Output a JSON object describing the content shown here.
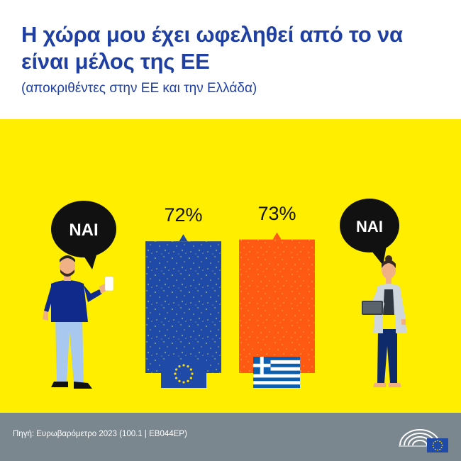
{
  "header": {
    "title": "Η χώρα μου έχει ωφεληθεί από το να είναι μέλος της ΕΕ",
    "subtitle": "(αποκριθέντες στην ΕΕ και την Ελλάδα)"
  },
  "footer": {
    "source": "Πηγή: Ευρωβαρόμετρο 2023 (100.1 | EB044EP)"
  },
  "bubbles": {
    "left": "ΝΑΙ",
    "right": "ΝΑΙ"
  },
  "colors": {
    "eu_blue": "#1f4aa8",
    "greece_orange": "#ff5a14",
    "background_yellow": "#ffee00",
    "title_blue": "#1f3fa3",
    "footer_grey": "#7a878f"
  },
  "icons": {
    "left_flag": "eu-flag-icon",
    "right_flag": "greece-flag-icon",
    "logo": "european-parliament-logo-icon"
  },
  "chart_data": {
    "type": "bar",
    "title": "Η χώρα μου έχει ωφεληθεί από το να είναι μέλος της ΕΕ",
    "subtitle": "(αποκριθέντες στην ΕΕ και την Ελλάδα)",
    "categories": [
      "EU",
      "Greece"
    ],
    "values": [
      72,
      73
    ],
    "value_labels": [
      "72%",
      "73%"
    ],
    "unit": "%",
    "ylim": [
      0,
      100
    ],
    "grid": false,
    "legend": "none"
  }
}
